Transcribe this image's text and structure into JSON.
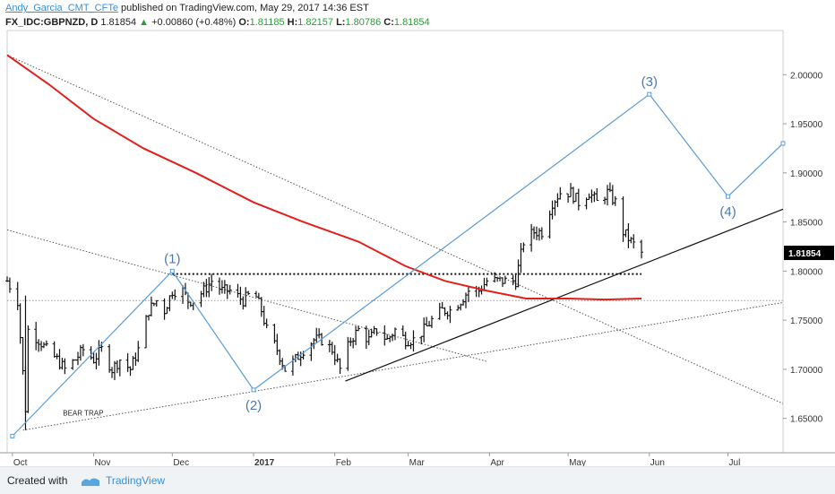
{
  "header": {
    "author": "Andy_Garcia_CMT_CFTe",
    "published_text": "published on TradingView.com, May 29, 2017 14:36 EST",
    "symbol": "FX_IDC:GBPNZD, D",
    "last": "1.81854",
    "change_arrow": "▲",
    "change": "+0.00860 (+0.48%)",
    "o_label": "O:",
    "o_value": "1.81185",
    "h_label": "H:",
    "h_value": "1.82157",
    "l_label": "L:",
    "l_value": "1.80786",
    "c_label": "C:",
    "c_value": "1.81854"
  },
  "footer": {
    "created_with": "Created with",
    "brand": "TradingView"
  },
  "colors": {
    "accent": "#3a8fd6",
    "ma": "#e0201b",
    "wave": "#5b9bd5",
    "price_tag_bg": "#000000"
  },
  "chart_data": {
    "type": "ohlc",
    "symbol": "GBPNZD",
    "timeframe": "D",
    "x_labels": [
      "Oct",
      "Nov",
      "Dec",
      "2017",
      "Feb",
      "Mar",
      "Apr",
      "May",
      "Jun",
      "Jul"
    ],
    "x_label_dates": [
      "2016-10-01",
      "2016-11-01",
      "2016-12-01",
      "2017-01-01",
      "2017-02-01",
      "2017-03-01",
      "2017-04-01",
      "2017-05-01",
      "2017-06-01",
      "2017-07-01"
    ],
    "y_ticks": [
      "2.00000",
      "1.95000",
      "1.90000",
      "1.85000",
      "1.80000",
      "1.75000",
      "1.70000",
      "1.65000"
    ],
    "y_tick_values": [
      2.0,
      1.95,
      1.9,
      1.85,
      1.8,
      1.75,
      1.7,
      1.65
    ],
    "ylim": [
      1.615,
      2.045
    ],
    "x_range": [
      "2016-09-29",
      "2017-07-22"
    ],
    "last_price_label": "1.81854",
    "last_price": 1.81854,
    "close_path": [
      [
        "2016-09-29",
        1.79
      ],
      [
        "2016-10-03",
        1.77
      ],
      [
        "2016-10-06",
        1.66
      ],
      [
        "2016-10-07",
        1.74
      ],
      [
        "2016-10-11",
        1.73
      ],
      [
        "2016-10-14",
        1.72
      ],
      [
        "2016-10-18",
        1.71
      ],
      [
        "2016-10-21",
        1.7
      ],
      [
        "2016-10-25",
        1.71
      ],
      [
        "2016-10-28",
        1.72
      ],
      [
        "2016-11-01",
        1.71
      ],
      [
        "2016-11-04",
        1.72
      ],
      [
        "2016-11-08",
        1.7
      ],
      [
        "2016-11-11",
        1.71
      ],
      [
        "2016-11-15",
        1.7
      ],
      [
        "2016-11-18",
        1.72
      ],
      [
        "2016-11-22",
        1.76
      ],
      [
        "2016-11-25",
        1.77
      ],
      [
        "2016-11-28",
        1.76
      ],
      [
        "2016-12-01",
        1.78
      ],
      [
        "2016-12-05",
        1.78
      ],
      [
        "2016-12-07",
        1.77
      ],
      [
        "2016-12-09",
        1.77
      ],
      [
        "2016-12-13",
        1.78
      ],
      [
        "2016-12-16",
        1.79
      ],
      [
        "2016-12-20",
        1.78
      ],
      [
        "2016-12-23",
        1.78
      ],
      [
        "2016-12-28",
        1.77
      ],
      [
        "2017-01-01",
        1.78
      ],
      [
        "2017-01-04",
        1.76
      ],
      [
        "2017-01-06",
        1.74
      ],
      [
        "2017-01-10",
        1.72
      ],
      [
        "2017-01-13",
        1.7
      ],
      [
        "2017-01-17",
        1.71
      ],
      [
        "2017-01-20",
        1.72
      ],
      [
        "2017-01-24",
        1.73
      ],
      [
        "2017-01-27",
        1.73
      ],
      [
        "2017-01-31",
        1.72
      ],
      [
        "2017-02-03",
        1.7
      ],
      [
        "2017-02-07",
        1.73
      ],
      [
        "2017-02-10",
        1.74
      ],
      [
        "2017-02-14",
        1.73
      ],
      [
        "2017-02-17",
        1.74
      ],
      [
        "2017-02-21",
        1.73
      ],
      [
        "2017-02-24",
        1.74
      ],
      [
        "2017-02-28",
        1.73
      ],
      [
        "2017-03-03",
        1.73
      ],
      [
        "2017-03-07",
        1.74
      ],
      [
        "2017-03-10",
        1.75
      ],
      [
        "2017-03-14",
        1.76
      ],
      [
        "2017-03-17",
        1.76
      ],
      [
        "2017-03-21",
        1.77
      ],
      [
        "2017-03-24",
        1.78
      ],
      [
        "2017-03-28",
        1.78
      ],
      [
        "2017-03-31",
        1.79
      ],
      [
        "2017-04-04",
        1.79
      ],
      [
        "2017-04-07",
        1.79
      ],
      [
        "2017-04-11",
        1.79
      ],
      [
        "2017-04-14",
        1.83
      ],
      [
        "2017-04-18",
        1.84
      ],
      [
        "2017-04-21",
        1.84
      ],
      [
        "2017-04-25",
        1.87
      ],
      [
        "2017-04-28",
        1.88
      ],
      [
        "2017-05-02",
        1.88
      ],
      [
        "2017-05-05",
        1.87
      ],
      [
        "2017-05-09",
        1.88
      ],
      [
        "2017-05-12",
        1.87
      ],
      [
        "2017-05-16",
        1.88
      ],
      [
        "2017-05-19",
        1.87
      ],
      [
        "2017-05-22",
        1.84
      ],
      [
        "2017-05-25",
        1.83
      ],
      [
        "2017-05-29",
        1.81854
      ]
    ],
    "moving_average": {
      "color": "#e0201b",
      "points": [
        [
          "2016-09-29",
          2.02
        ],
        [
          "2016-10-15",
          1.99
        ],
        [
          "2016-11-01",
          1.955
        ],
        [
          "2016-11-20",
          1.925
        ],
        [
          "2016-12-10",
          1.9
        ],
        [
          "2017-01-01",
          1.87
        ],
        [
          "2017-01-20",
          1.85
        ],
        [
          "2017-02-10",
          1.83
        ],
        [
          "2017-02-28",
          1.805
        ],
        [
          "2017-03-15",
          1.79
        ],
        [
          "2017-03-31",
          1.78
        ],
        [
          "2017-04-15",
          1.772
        ],
        [
          "2017-05-01",
          1.772
        ],
        [
          "2017-05-15",
          1.771
        ],
        [
          "2017-05-29",
          1.772
        ]
      ]
    },
    "wave_count": {
      "color": "#5b9bd5",
      "points": [
        {
          "label": "",
          "date": "2016-10-01",
          "value": 1.632
        },
        {
          "label": "(1)",
          "date": "2016-12-01",
          "value": 1.8
        },
        {
          "label": "(2)",
          "date": "2017-01-01",
          "value": 1.679
        },
        {
          "label": "(3)",
          "date": "2017-06-01",
          "value": 1.98
        },
        {
          "label": "(4)",
          "date": "2017-07-01",
          "value": 1.876
        },
        {
          "label": "",
          "date": "2017-07-22",
          "value": 1.93
        }
      ]
    },
    "trendlines": [
      {
        "style": "dotted",
        "color": "#555555",
        "from": [
          "2016-09-29",
          2.02
        ],
        "to": [
          "2017-07-22",
          1.665
        ]
      },
      {
        "style": "dotted",
        "color": "#555555",
        "from": [
          "2016-09-29",
          1.842
        ],
        "to": [
          "2017-03-31",
          1.708
        ]
      },
      {
        "style": "dotted",
        "color": "#555555",
        "from": [
          "2016-10-05",
          1.638
        ],
        "to": [
          "2017-07-22",
          1.768
        ]
      },
      {
        "style": "dotted",
        "color": "#999999",
        "from": [
          "2016-09-29",
          1.77
        ],
        "to": [
          "2017-07-22",
          1.77
        ]
      },
      {
        "style": "dotted-bold",
        "color": "#111111",
        "from": [
          "2016-12-01",
          1.797
        ],
        "to": [
          "2017-05-29",
          1.797
        ]
      },
      {
        "style": "solid",
        "color": "#111111",
        "from": [
          "2017-02-05",
          1.688
        ],
        "to": [
          "2017-07-22",
          1.863
        ]
      }
    ],
    "annotations": [
      {
        "text": "BEAR TRAP",
        "date": "2016-10-28",
        "value": 1.653
      }
    ]
  }
}
